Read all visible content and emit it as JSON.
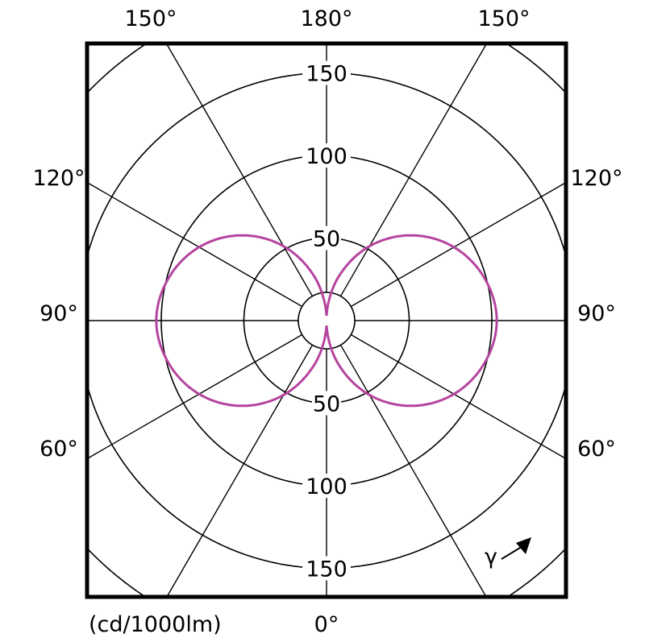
{
  "chart_data": {
    "type": "polar",
    "unit_label": "(cd/1000lm)",
    "radial_ticks": [
      50,
      100,
      150
    ],
    "radial_tick_labels": [
      "50",
      "100",
      "150"
    ],
    "radial_range": [
      0,
      200
    ],
    "radial_grid": [
      50,
      100,
      150,
      200
    ],
    "angle_labels": {
      "top": [
        "150°",
        "180°",
        "150°"
      ],
      "left": [
        "120°",
        "90°",
        "60°"
      ],
      "right": [
        "120°",
        "90°",
        "60°"
      ],
      "bottom": "0°"
    },
    "angle_spokes_step_deg": 30,
    "gamma_symbol": "γ",
    "series": [
      {
        "color": "#b5449f",
        "gamma_deg": [
          0,
          15,
          30,
          45,
          60,
          75,
          90,
          105,
          120,
          135,
          150,
          165,
          180
        ],
        "intensity": [
          3,
          27,
          52,
          73,
          89,
          99,
          103,
          99,
          89,
          73,
          52,
          27,
          3
        ],
        "symmetric": true
      }
    ]
  }
}
